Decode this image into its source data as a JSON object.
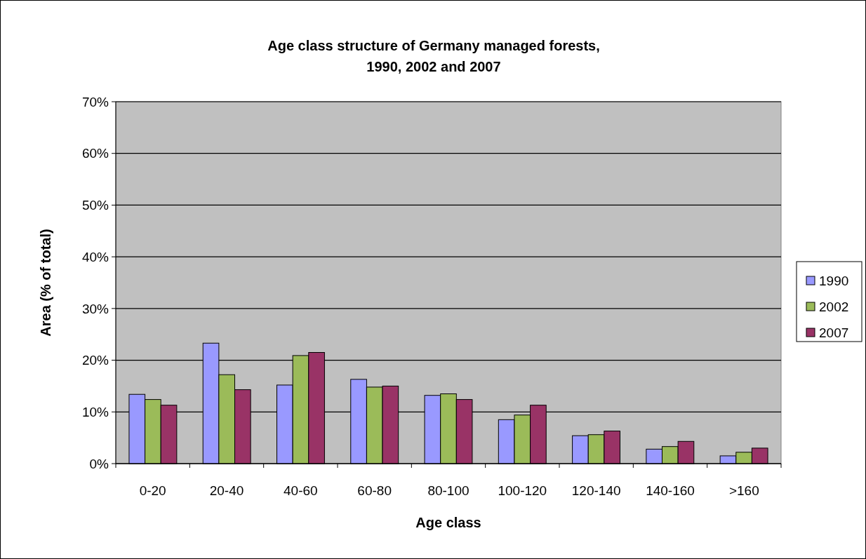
{
  "chart_data": {
    "type": "bar",
    "title": "Age class structure of Germany managed forests,\n1990, 2002 and 2007",
    "xlabel": "Age class",
    "ylabel": "Area (% of total)",
    "categories": [
      "0-20",
      "20-40",
      "40-60",
      "60-80",
      "80-100",
      "100-120",
      "120-140",
      "140-160",
      ">160"
    ],
    "series": [
      {
        "name": "1990",
        "color": "#9999ff",
        "values": [
          13.4,
          23.3,
          15.2,
          16.3,
          13.2,
          8.5,
          5.4,
          2.8,
          1.5
        ]
      },
      {
        "name": "2002",
        "color": "#9bbb59",
        "values": [
          12.4,
          17.2,
          20.9,
          14.8,
          13.5,
          9.4,
          5.6,
          3.3,
          2.2
        ]
      },
      {
        "name": "2007",
        "color": "#993366",
        "values": [
          11.3,
          14.3,
          21.5,
          15.0,
          12.4,
          11.3,
          6.3,
          4.3,
          3.0
        ]
      }
    ],
    "ylim": [
      0,
      70
    ],
    "yticks": [
      {
        "value": 0,
        "label": "0%"
      },
      {
        "value": 10,
        "label": "10%"
      },
      {
        "value": 20,
        "label": "20%"
      },
      {
        "value": 30,
        "label": "30%"
      },
      {
        "value": 40,
        "label": "40%"
      },
      {
        "value": 50,
        "label": "50%"
      },
      {
        "value": 60,
        "label": "60%"
      },
      {
        "value": 70,
        "label": "70%"
      }
    ],
    "grid": "y",
    "legend": "right"
  }
}
